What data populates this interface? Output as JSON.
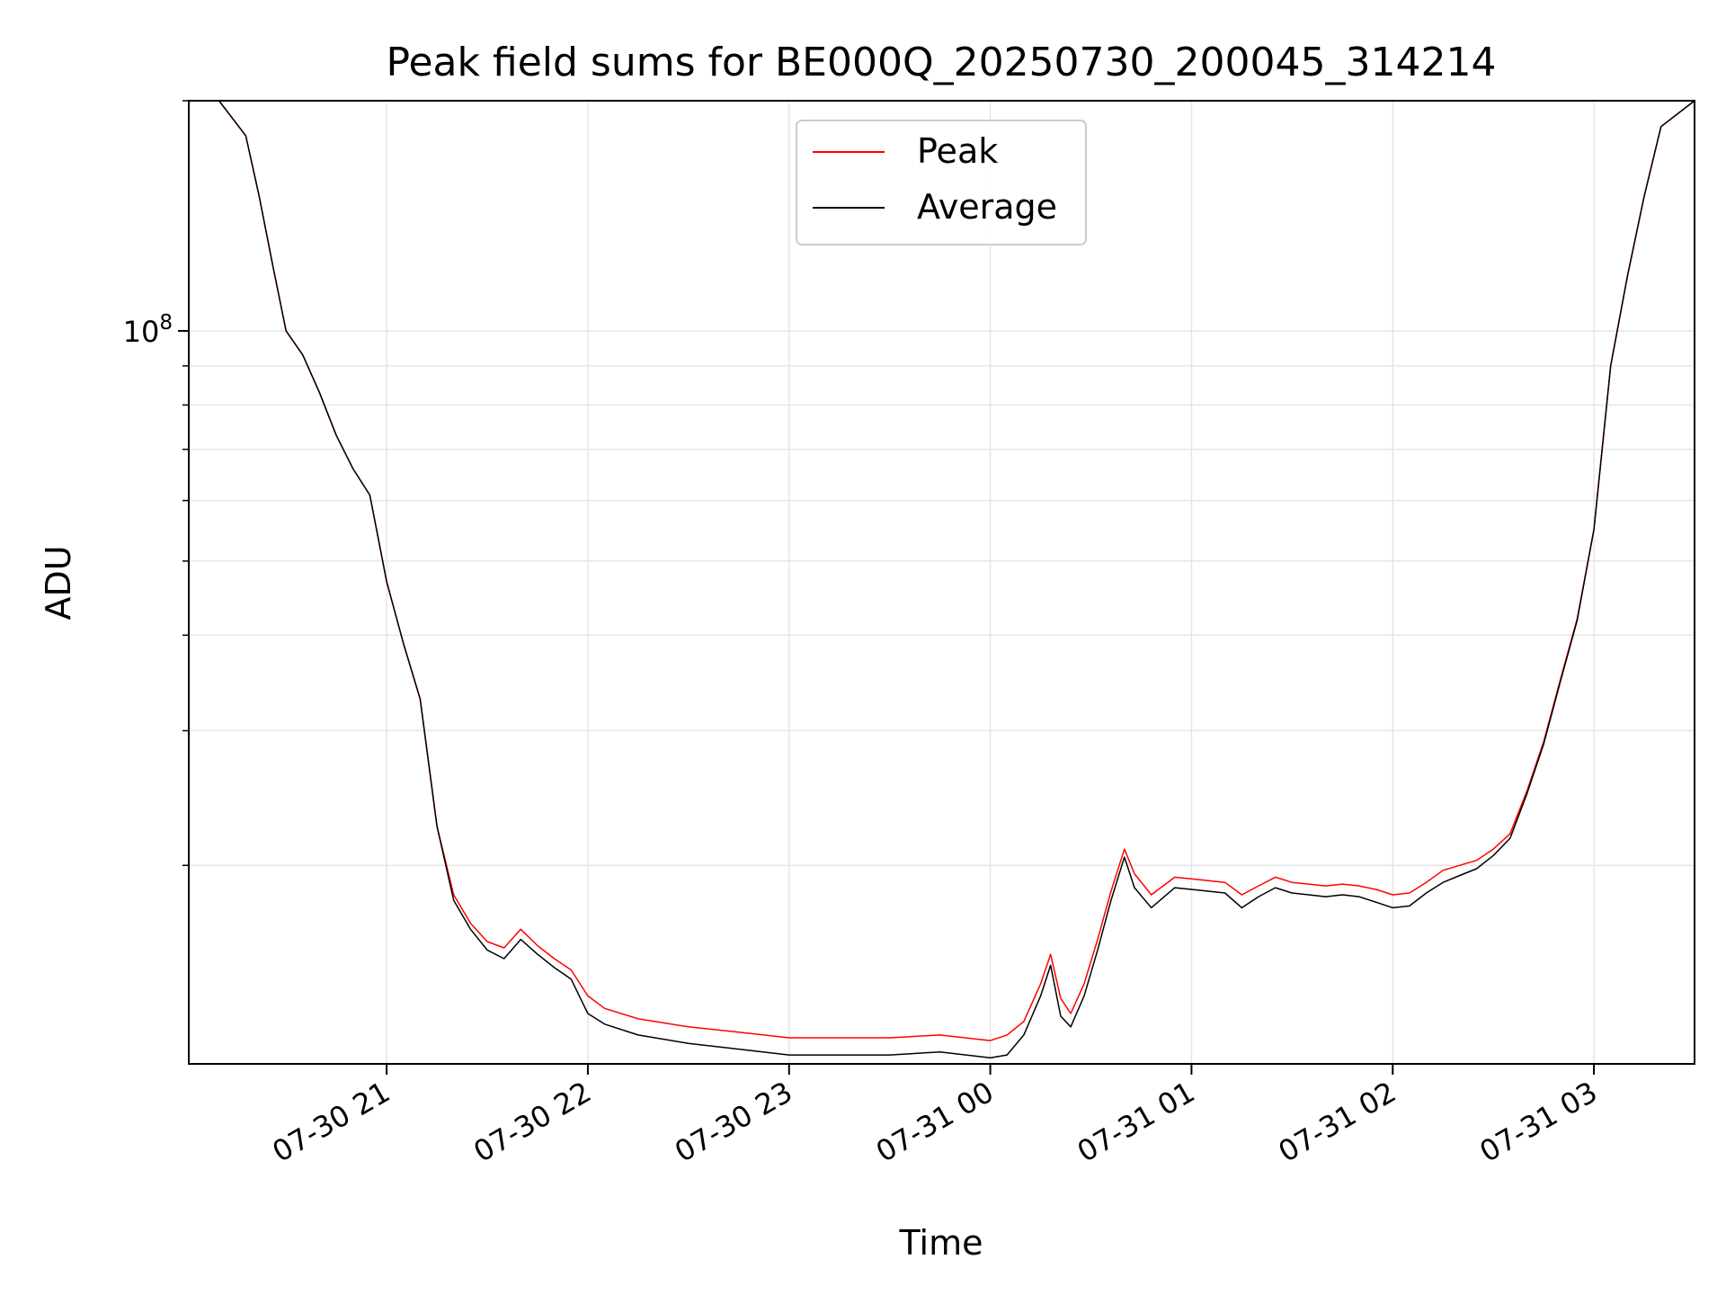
{
  "chart_data": {
    "type": "line",
    "title": "Peak field sums for BE000Q_20250730_200045_314214",
    "xlabel": "Time",
    "ylabel": "ADU",
    "yscale": "log",
    "ylim": [
      11000000,
      200000000
    ],
    "xlim": [
      "2025-07-30 20:01",
      "2025-07-31 03:30"
    ],
    "grid": true,
    "legend_position": "top-center",
    "x_tick_labels": [
      "07-30 21",
      "07-30 22",
      "07-30 23",
      "07-31 00",
      "07-31 01",
      "07-31 02",
      "07-31 03"
    ],
    "x_ticks": [
      "2025-07-30 21:00",
      "2025-07-30 22:00",
      "2025-07-30 23:00",
      "2025-07-31 00:00",
      "2025-07-31 01:00",
      "2025-07-31 02:00",
      "2025-07-31 03:00"
    ],
    "y_tick_labels": [
      {
        "base": "10",
        "exp": "8",
        "value": 100000000
      }
    ],
    "series": [
      {
        "name": "Peak",
        "color": "#ff0000",
        "x": [
          "2025-07-30 20:01",
          "2025-07-30 20:10",
          "2025-07-30 20:18",
          "2025-07-30 20:22",
          "2025-07-30 20:26",
          "2025-07-30 20:30",
          "2025-07-30 20:35",
          "2025-07-30 20:40",
          "2025-07-30 20:45",
          "2025-07-30 20:50",
          "2025-07-30 20:55",
          "2025-07-30 21:00",
          "2025-07-30 21:05",
          "2025-07-30 21:10",
          "2025-07-30 21:15",
          "2025-07-30 21:20",
          "2025-07-30 21:25",
          "2025-07-30 21:30",
          "2025-07-30 21:35",
          "2025-07-30 21:40",
          "2025-07-30 21:45",
          "2025-07-30 21:50",
          "2025-07-30 21:55",
          "2025-07-30 22:00",
          "2025-07-30 22:05",
          "2025-07-30 22:15",
          "2025-07-30 22:30",
          "2025-07-30 22:45",
          "2025-07-30 23:00",
          "2025-07-30 23:15",
          "2025-07-30 23:30",
          "2025-07-30 23:45",
          "2025-07-31 00:00",
          "2025-07-31 00:05",
          "2025-07-31 00:10",
          "2025-07-31 00:15",
          "2025-07-31 00:18",
          "2025-07-31 00:21",
          "2025-07-31 00:24",
          "2025-07-31 00:28",
          "2025-07-31 00:32",
          "2025-07-31 00:36",
          "2025-07-31 00:40",
          "2025-07-31 00:43",
          "2025-07-31 00:48",
          "2025-07-31 00:55",
          "2025-07-31 01:00",
          "2025-07-31 01:10",
          "2025-07-31 01:15",
          "2025-07-31 01:20",
          "2025-07-31 01:25",
          "2025-07-31 01:30",
          "2025-07-31 01:35",
          "2025-07-31 01:40",
          "2025-07-31 01:45",
          "2025-07-31 01:50",
          "2025-07-31 01:55",
          "2025-07-31 02:00",
          "2025-07-31 02:05",
          "2025-07-31 02:10",
          "2025-07-31 02:15",
          "2025-07-31 02:20",
          "2025-07-31 02:25",
          "2025-07-31 02:30",
          "2025-07-31 02:35",
          "2025-07-31 02:40",
          "2025-07-31 02:45",
          "2025-07-31 02:50",
          "2025-07-31 02:55",
          "2025-07-31 03:00",
          "2025-07-31 03:05",
          "2025-07-31 03:10",
          "2025-07-31 03:15",
          "2025-07-31 03:20",
          "2025-07-31 03:30"
        ],
        "y": [
          200000000,
          200000000,
          180000000,
          150000000,
          122000000,
          100000000,
          93000000,
          83000000,
          73000000,
          66000000,
          61000000,
          47000000,
          39000000,
          33000000,
          22500000,
          18300000,
          16800000,
          15900000,
          15600000,
          16500000,
          15700000,
          15100000,
          14600000,
          13500000,
          13000000,
          12600000,
          12300000,
          12100000,
          11900000,
          11900000,
          11900000,
          12000000,
          11800000,
          12000000,
          12500000,
          14000000,
          15300000,
          13400000,
          12800000,
          14000000,
          16000000,
          18500000,
          21000000,
          19500000,
          18300000,
          19300000,
          19200000,
          19000000,
          18300000,
          18800000,
          19300000,
          19000000,
          18900000,
          18800000,
          18900000,
          18800000,
          18600000,
          18300000,
          18400000,
          19000000,
          19700000,
          20000000,
          20300000,
          21000000,
          22000000,
          25000000,
          29000000,
          35000000,
          42000000,
          55000000,
          90000000,
          118000000,
          150000000,
          185000000,
          200000000
        ]
      },
      {
        "name": "Average",
        "color": "#000000",
        "x": [
          "2025-07-30 20:01",
          "2025-07-30 20:10",
          "2025-07-30 20:18",
          "2025-07-30 20:22",
          "2025-07-30 20:26",
          "2025-07-30 20:30",
          "2025-07-30 20:35",
          "2025-07-30 20:40",
          "2025-07-30 20:45",
          "2025-07-30 20:50",
          "2025-07-30 20:55",
          "2025-07-30 21:00",
          "2025-07-30 21:05",
          "2025-07-30 21:10",
          "2025-07-30 21:15",
          "2025-07-30 21:20",
          "2025-07-30 21:25",
          "2025-07-30 21:30",
          "2025-07-30 21:35",
          "2025-07-30 21:40",
          "2025-07-30 21:45",
          "2025-07-30 21:50",
          "2025-07-30 21:55",
          "2025-07-30 22:00",
          "2025-07-30 22:05",
          "2025-07-30 22:15",
          "2025-07-30 22:30",
          "2025-07-30 22:45",
          "2025-07-30 23:00",
          "2025-07-30 23:15",
          "2025-07-30 23:30",
          "2025-07-30 23:45",
          "2025-07-31 00:00",
          "2025-07-31 00:05",
          "2025-07-31 00:10",
          "2025-07-31 00:15",
          "2025-07-31 00:18",
          "2025-07-31 00:21",
          "2025-07-31 00:24",
          "2025-07-31 00:28",
          "2025-07-31 00:32",
          "2025-07-31 00:36",
          "2025-07-31 00:40",
          "2025-07-31 00:43",
          "2025-07-31 00:48",
          "2025-07-31 00:55",
          "2025-07-31 01:00",
          "2025-07-31 01:10",
          "2025-07-31 01:15",
          "2025-07-31 01:20",
          "2025-07-31 01:25",
          "2025-07-31 01:30",
          "2025-07-31 01:35",
          "2025-07-31 01:40",
          "2025-07-31 01:45",
          "2025-07-31 01:50",
          "2025-07-31 01:55",
          "2025-07-31 02:00",
          "2025-07-31 02:05",
          "2025-07-31 02:10",
          "2025-07-31 02:15",
          "2025-07-31 02:20",
          "2025-07-31 02:25",
          "2025-07-31 02:30",
          "2025-07-31 02:35",
          "2025-07-31 02:40",
          "2025-07-31 02:45",
          "2025-07-31 02:50",
          "2025-07-31 02:55",
          "2025-07-31 03:00",
          "2025-07-31 03:05",
          "2025-07-31 03:10",
          "2025-07-31 03:15",
          "2025-07-31 03:20",
          "2025-07-31 03:30"
        ],
        "y": [
          200000000,
          200000000,
          180000000,
          150000000,
          122000000,
          100000000,
          93000000,
          83000000,
          73000000,
          66000000,
          61000000,
          47000000,
          39000000,
          33000000,
          22500000,
          18000000,
          16500000,
          15500000,
          15100000,
          16000000,
          15300000,
          14700000,
          14200000,
          12800000,
          12400000,
          12000000,
          11700000,
          11500000,
          11300000,
          11300000,
          11300000,
          11400000,
          11200000,
          11300000,
          12000000,
          13500000,
          14800000,
          12700000,
          12300000,
          13500000,
          15500000,
          18000000,
          20500000,
          18700000,
          17600000,
          18700000,
          18600000,
          18400000,
          17600000,
          18200000,
          18700000,
          18400000,
          18300000,
          18200000,
          18300000,
          18200000,
          17900000,
          17600000,
          17700000,
          18400000,
          19000000,
          19400000,
          19800000,
          20600000,
          21700000,
          24800000,
          28800000,
          34800000,
          41800000,
          55000000,
          90000000,
          118000000,
          150000000,
          185000000,
          200000000
        ]
      }
    ]
  }
}
